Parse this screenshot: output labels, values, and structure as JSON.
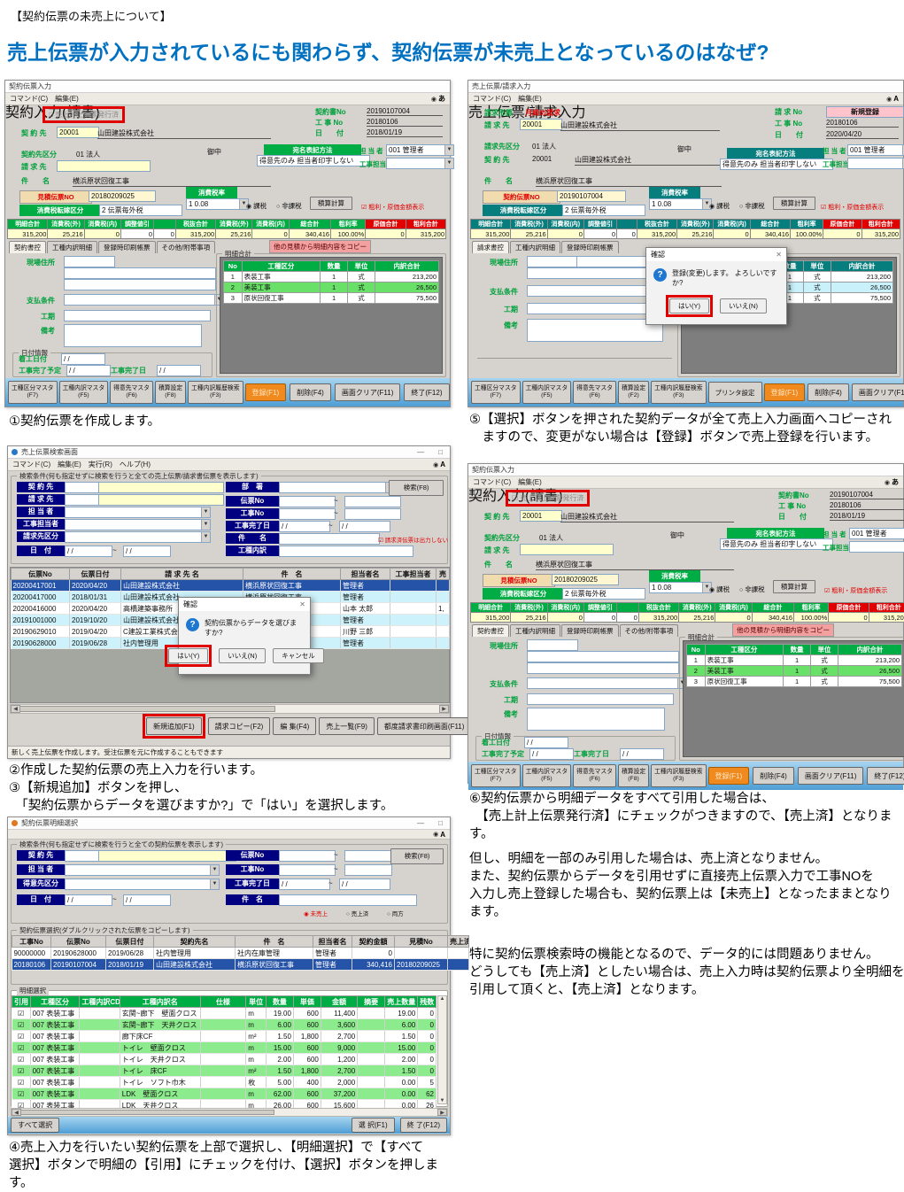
{
  "page": {
    "tag": "【契約伝票の未売上について】",
    "title": "売上伝票が入力されているにも関わらず、契約伝票が未売上となっているのはなぜ?",
    "captions": {
      "c1": "①契約伝票を作成します。",
      "c23": "②作成した契約伝票の売上入力を行います。\n③【新規追加】ボタンを押し、\n　「契約伝票からデータを選びますか?」で「はい」を選択します。",
      "c4": "④売上入力を行いたい契約伝票を上部で選択し、【明細選択】で【すべて\n選択】ボタンで明細の【引用】にチェックを付け、【選択】ボタンを押します。",
      "c5": "⑤【選択】ボタンを押された契約データが全て売上入力画面へコピーされ\n　ますので、変更がない場合は【登録】ボタンで売上登録を行います。",
      "c6": "⑥契約伝票から明細データをすべて引用した場合は、\n　【売上計上伝票発行済】にチェックがつきますので、【売上済】となります。",
      "body1": "但し、明細を一部のみ引用した場合は、売上済となりません。\nまた、契約伝票からデータを引用せずに直接売上伝票入力で工事NOを\n入力し売上登録した場合も、契約伝票上は【未売上】となったままとなり\nます。",
      "body2": "特に契約伝票検索時の機能となるので、データ的には問題ありません。\nどうしても【売上済】としたい場合は、売上入力時は契約伝票より全明細を\n引用して頂くと、【売上済】となります。"
    }
  },
  "ui": {
    "slash": "/  /",
    "tilde": "~",
    "min_max": "—　□"
  },
  "actions": {
    "register": "登録(F1)",
    "del": "削除(F4)",
    "clear": "画面クリア(F11)",
    "exit": "終了(F12)"
  },
  "colors": {
    "accent_green": "#00ad44",
    "accent_teal": "#077e7e",
    "alert_red": "#e00000",
    "register_orange": "#f08a1e"
  },
  "winA": {
    "title": "契約伝票入力",
    "menu": "コマンド(C)　編集(E)",
    "ime": "あ",
    "slip_flag": {
      "box": "□",
      "label": "売上計上伝票発行済"
    },
    "banner": "契約入力(請書)",
    "honorific": "御中",
    "refs": {
      "no_label": "契約書No",
      "no": "20190107004",
      "koji_label": "工 事 No",
      "koji": "20180106",
      "date_label": "日　　付",
      "date": "2018/01/19"
    },
    "fields": {
      "keiyaku_label": "契 約 先",
      "keiyaku_code": "20001",
      "keiyaku_name": "山田建設株式会社",
      "kubun_label": "契約先区分",
      "kubun": "01 法人",
      "seikyu_label": "請 求 先",
      "kenmei_label": "件　　名",
      "kenmei": "横浜原状回復工事",
      "atena_header": "宛名表記方法",
      "atena_value": "得意先のみ 担当者印字しない",
      "tanto_label": "担 当 者",
      "tanto": "001 管理者",
      "koji_tanto_label": "工事担当者",
      "mitsumori_label": "見積伝票NO",
      "mitsumori": "20180209025",
      "zeiritsu_label": "消費税率",
      "zeiritsu": "1  0.08",
      "tenka_label": "消費税転嫁区分",
      "tenka": "2 伝票毎外税",
      "kazei": "課税",
      "hikazei": "非課税",
      "sekisan": "積算計算",
      "arari_chk": "粗利・原価金額表示"
    },
    "totals": {
      "rows": [
        {
          "cls": "h",
          "c": [
            "明細合計",
            "消費税(外)",
            "消費税(内)",
            "調整値引",
            "",
            "税抜合計",
            "消費税(外)",
            "消費税(内)",
            "総合計",
            "粗利率",
            "原価合計",
            "粗利合計"
          ]
        },
        {
          "cls": "v",
          "c": [
            "315,200",
            "25,216",
            "0",
            "0",
            "0",
            "315,200",
            "25,216",
            "0",
            "340,416",
            "100.00%",
            "0",
            "315,200"
          ]
        }
      ]
    },
    "tabs": [
      "契約書控",
      "工種内訳明細",
      "登録時印刷帳票",
      "その他/附帯事項"
    ],
    "copy_btn": "他の見積から明細内容をコピー",
    "body": {
      "genba": "現場住所",
      "shiharai": "支払条件",
      "kouki": "工期",
      "biko": "備考",
      "date_info": "日付情報",
      "chakko": "着工日付",
      "kanryo_yotei": "工事完了予定",
      "kanryo": "工事完了日"
    },
    "detail": {
      "title": "明細合計",
      "rows": [
        {
          "cls": "h",
          "c": [
            "No",
            "工種区分",
            "数量",
            "単位",
            "内訳合計"
          ]
        },
        {
          "c": [
            "1",
            "表装工事",
            "1",
            "式",
            "213,200"
          ]
        },
        {
          "cls": "grn",
          "c": [
            "2",
            "美装工事",
            "1",
            "式",
            "26,500"
          ]
        },
        {
          "c": [
            "3",
            "原状回復工事",
            "1",
            "式",
            "75,500"
          ]
        }
      ]
    },
    "fbtns": [
      {
        "l": "工種区分マスタ",
        "k": "(F7)"
      },
      {
        "l": "工種内訳マスタ",
        "k": "(F5)"
      },
      {
        "l": "得意先マスタ",
        "k": "(F6)"
      },
      {
        "l": "積算設定",
        "k": "(F8)"
      },
      {
        "l": "工種内訳履歴検索",
        "k": "(F3)"
      }
    ]
  },
  "winE": {
    "ime": "あ",
    "slip_flag": {
      "box": "☑"
    }
  },
  "winD": {
    "title": "売上伝票/請求入力",
    "menu": "コマンド(C)　編集(E)",
    "ime": "A",
    "banner": "売上伝票/請求入力",
    "honorific": "御中",
    "keitai_label": "請求形態",
    "keitai": "月締め請求",
    "refs": {
      "no_label": "請 求 No",
      "no": "新規登録",
      "koji_label": "工 事 No",
      "koji": "20180106",
      "date_label": "日　　付",
      "date": "2020/04/20"
    },
    "fields": {
      "seikyu_label": "請 求 先",
      "seikyu_code": "20001",
      "seikyu_name": "山田建設株式会社",
      "kubun_label": "請求先区分",
      "kubun": "01 法人",
      "keiyaku_label": "契 約 先",
      "keiyaku_code": "20001",
      "keiyaku_name": "山田建設株式会社",
      "kenmei_label": "件　　名",
      "kenmei": "横浜原状回復工事",
      "atena_header": "宛名表記方法",
      "atena_value": "得意先のみ 担当者印字しない",
      "tanto_label": "担 当 者",
      "tanto": "001 管理者",
      "koji_tanto_label": "工事担当者",
      "denpyo_label": "契約伝票NO",
      "denpyo": "20190107004",
      "zeiritsu_label": "消費税率",
      "zeiritsu": "1  0.08",
      "tenka_label": "消費税転嫁区分",
      "tenka": "2 伝票毎外税",
      "kazei": "課税",
      "hikazei": "非課税",
      "sekisan": "積算計算",
      "arari_chk": "粗利・原価金額表示"
    },
    "totals": {
      "rows": [
        {
          "cls": "h",
          "c": [
            "明細合計",
            "消費税(外)",
            "消費税(内)",
            "調整値引",
            "",
            "税抜合計",
            "消費税(外)",
            "消費税(内)",
            "総合計",
            "粗利率",
            "原価合計",
            "粗利合計"
          ]
        },
        {
          "cls": "v",
          "c": [
            "315,200",
            "25,216",
            "0",
            "0",
            "0",
            "315,200",
            "25,216",
            "0",
            "340,416",
            "100.00%",
            "0",
            "315,200"
          ]
        }
      ]
    },
    "tabs": [
      "請求書控",
      "工種内訳明細",
      "登録時印刷帳票"
    ],
    "body": {
      "genba": "現場住所",
      "shiharai": "支払条件",
      "kouki": "工期",
      "biko": "備考"
    },
    "detail": {
      "title": "明細合計",
      "rows": [
        {
          "cls": "h",
          "c": [
            "",
            "",
            "数量",
            "単位",
            "内訳合計"
          ]
        },
        {
          "c": [
            "",
            "",
            "1",
            "式",
            "213,200"
          ]
        },
        {
          "cls": "cyan",
          "c": [
            "",
            "",
            "1",
            "式",
            "26,500"
          ]
        },
        {
          "c": [
            "",
            "",
            "1",
            "式",
            "75,500"
          ]
        }
      ]
    },
    "dialog": {
      "title": "確認",
      "msg": "登録(変更)します。 よろしいですか?",
      "yes": "はい(Y)",
      "no": "いいえ(N)"
    },
    "fbtns": [
      {
        "l": "工種区分マスタ",
        "k": "(F7)"
      },
      {
        "l": "工種内訳マスタ",
        "k": "(F5)"
      },
      {
        "l": "得意先マスタ",
        "k": "(F6)"
      },
      {
        "l": "積算設定",
        "k": "(F2)"
      },
      {
        "l": "工種内訳履歴検索",
        "k": "(F3)"
      }
    ],
    "printer_btn": "プリンタ設定"
  },
  "winB": {
    "title": "売上伝票検索画面",
    "menu": "コマンド(C)　編集(E)　実行(R)　ヘルプ(H)",
    "ime": "A",
    "group": "検索条件(何も指定せずに検索を行うと全ての売上伝票/請求書伝票を表示します)",
    "labels": {
      "keiyaku": "契 約 先",
      "seikyu": "請 求 先",
      "tanto": "担 当 者",
      "koji_tanto": "工事担当者",
      "kubun": "請求先区分",
      "date": "日　付",
      "busho": "部　署",
      "denpyo": "伝票No",
      "koji": "工事No",
      "kanryo": "工事完了日",
      "kenmei": "件　　名",
      "koushu": "工種内訳"
    },
    "search_btn": "検索(F8)",
    "chk": "請求済伝票は出力しない",
    "table": {
      "rows": [
        {
          "cls": "h",
          "c": [
            "伝票No",
            "伝票日付",
            "請 求 先 名",
            "件　名",
            "担当者名",
            "工事担当者",
            "売"
          ]
        },
        {
          "cls": "sel",
          "c": [
            "20200417001",
            "2020/04/20",
            "山田建設株式会社",
            "横浜原状回復工事",
            "管理者",
            "",
            ""
          ]
        },
        {
          "cls": "alt",
          "c": [
            "20200417000",
            "2018/01/31",
            "山田建設株式会社",
            "横浜原状回復工事",
            "管理者",
            "",
            ""
          ]
        },
        {
          "c": [
            "20200416000",
            "2020/04/20",
            "高橋建築事務所",
            "",
            "山本 太郎",
            "",
            "1,"
          ]
        },
        {
          "cls": "alt",
          "c": [
            "20191001000",
            "2019/10/20",
            "山田建設株式会社",
            "",
            "管理者",
            "",
            ""
          ]
        },
        {
          "c": [
            "20190629010",
            "2019/04/20",
            "C建設工業株式会社",
            "",
            "川野 三郎",
            "",
            ""
          ]
        },
        {
          "cls": "alt",
          "c": [
            "20190628000",
            "2019/06/28",
            "社内管理用",
            "",
            "管理者",
            "",
            ""
          ]
        }
      ]
    },
    "dialog": {
      "title": "確認",
      "msg": "契約伝票からデータを選びますか?",
      "yes": "はい(Y)",
      "no": "いいえ(N)",
      "cancel": "キャンセル"
    },
    "btns": {
      "add": "新規追加(F1)",
      "copy": "請求コピー(F2)",
      "edit": "編 集(F4)",
      "list": "売上一覧(F9)",
      "print": "都度請求書印刷画面(F11)",
      "exit": "終 了(F12)"
    },
    "status": "新しく売上伝票を作成します。受注伝票を元に作成することもできます"
  },
  "winC": {
    "title": "契約伝票明細選択",
    "ime": "A",
    "group": "検索条件(何も指定せずに検索を行うと全ての契約伝票を表示します)",
    "labels": {
      "keiyaku": "契 約 先",
      "tanto": "担 当 者",
      "tokuisaki": "得意先区分",
      "date": "日　付",
      "denpyo": "伝票No",
      "koji": "工事No",
      "kanryo": "工事完了日",
      "kenmei": "件　名"
    },
    "search_btn": "検索(F8)",
    "radios": [
      {
        "g": "◉",
        "t": "未売上"
      },
      {
        "g": "○",
        "t": "売上済"
      },
      {
        "g": "○",
        "t": "両方"
      }
    ],
    "group2": "契約伝票選択(ダブルクリックされた伝票をコピーします)",
    "table": {
      "rows": [
        {
          "cls": "h",
          "c": [
            "工事No",
            "伝票No",
            "伝票日付",
            "契約先名",
            "件　名",
            "担当者名",
            "契約金額",
            "見積No",
            "売上済"
          ]
        },
        {
          "c": [
            "90000000",
            "20190628000",
            "2019/06/28",
            "社内管理用",
            "社内在庫管理",
            "管理者",
            "0",
            "",
            ""
          ]
        },
        {
          "cls": "sel",
          "c": [
            "20180106",
            "20190107004",
            "2018/01/19",
            "山田建設株式会社",
            "横浜原状回復工事",
            "管理者",
            "340,416",
            "20180209025",
            ""
          ]
        }
      ]
    },
    "group3": "明細選択",
    "detail": {
      "rows": [
        {
          "cls": "h",
          "c": [
            "引用",
            "工種区分",
            "工種内訳CD",
            "工種内訳名",
            "仕様",
            "単位",
            "数量",
            "単価",
            "金額",
            "摘要",
            "売上数量",
            "残数"
          ]
        },
        {
          "c": [
            "☑",
            "007 表装工事",
            "",
            "玄関~廊下　壁面クロス",
            "",
            "m",
            "19.00",
            "600",
            "11,400",
            "",
            "19.00",
            "0"
          ]
        },
        {
          "cls": "grn",
          "c": [
            "☑",
            "007 表装工事",
            "",
            "玄関~廊下　天井クロス",
            "",
            "m",
            "6.00",
            "600",
            "3,600",
            "",
            "6.00",
            "0"
          ]
        },
        {
          "c": [
            "☑",
            "007 表装工事",
            "",
            "廊下床CF",
            "",
            "m²",
            "1.50",
            "1,800",
            "2,700",
            "",
            "1.50",
            "0"
          ]
        },
        {
          "cls": "grn",
          "c": [
            "☑",
            "007 表装工事",
            "",
            "トイレ　壁面クロス",
            "",
            "m",
            "15.00",
            "600",
            "9,000",
            "",
            "15.00",
            "0"
          ]
        },
        {
          "c": [
            "☑",
            "007 表装工事",
            "",
            "トイレ　天井クロス",
            "",
            "m",
            "2.00",
            "600",
            "1,200",
            "",
            "2.00",
            "0"
          ]
        },
        {
          "cls": "grn",
          "c": [
            "☑",
            "007 表装工事",
            "",
            "トイレ　床CF",
            "",
            "m²",
            "1.50",
            "1,800",
            "2,700",
            "",
            "1.50",
            "0"
          ]
        },
        {
          "c": [
            "☑",
            "007 表装工事",
            "",
            "トイレ　ソフト巾木",
            "",
            "枚",
            "5.00",
            "400",
            "2,000",
            "",
            "0.00",
            "5"
          ]
        },
        {
          "cls": "grn",
          "c": [
            "☑",
            "007 表装工事",
            "",
            "LDK　壁面クロス",
            "",
            "m",
            "62.00",
            "600",
            "37,200",
            "",
            "0.00",
            "62"
          ]
        },
        {
          "c": [
            "☑",
            "007 表装工事",
            "",
            "LDK　天井クロス",
            "",
            "m",
            "26.00",
            "600",
            "15,600",
            "",
            "0.00",
            "26"
          ]
        }
      ]
    },
    "btns": {
      "all": "すべて選択",
      "select": "選 択(F1)",
      "exit": "終 了(F12)"
    }
  }
}
